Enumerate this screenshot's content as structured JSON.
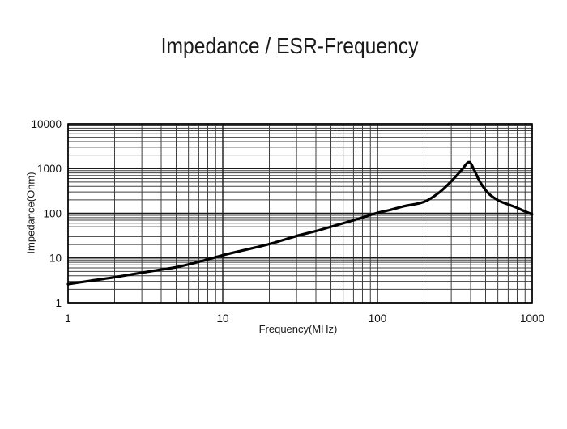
{
  "page": {
    "background": "#ffffff",
    "text_color": "#111111"
  },
  "chart_data": {
    "type": "line",
    "title": "Impedance / ESR-Frequency",
    "xlabel": "Frequency(MHz)",
    "ylabel": "Impedance(Ohm)",
    "x_scale": "log",
    "y_scale": "log",
    "xlim": [
      1,
      1000
    ],
    "ylim": [
      1,
      10000
    ],
    "x_ticks": [
      1,
      10,
      100,
      1000
    ],
    "y_ticks": [
      1,
      10,
      100,
      1000,
      10000
    ],
    "grid": {
      "major": true,
      "minor": true,
      "major_color": "#1a1a1a",
      "minor_color": "#3f3f3f"
    },
    "legend": "none",
    "series": [
      {
        "name": "Impedance",
        "color": "#000000",
        "points": [
          [
            1,
            2.6
          ],
          [
            1.4,
            3.1
          ],
          [
            2,
            3.7
          ],
          [
            3,
            4.7
          ],
          [
            4,
            5.5
          ],
          [
            5,
            6.2
          ],
          [
            7,
            8.2
          ],
          [
            10,
            11.5
          ],
          [
            14,
            15.2
          ],
          [
            20,
            20.5
          ],
          [
            30,
            31
          ],
          [
            40,
            40
          ],
          [
            50,
            50
          ],
          [
            70,
            70
          ],
          [
            100,
            102
          ],
          [
            120,
            118
          ],
          [
            150,
            145
          ],
          [
            200,
            180
          ],
          [
            250,
            290
          ],
          [
            300,
            520
          ],
          [
            350,
            930
          ],
          [
            390,
            1400
          ],
          [
            420,
            960
          ],
          [
            450,
            580
          ],
          [
            480,
            400
          ],
          [
            520,
            280
          ],
          [
            570,
            220
          ],
          [
            620,
            185
          ],
          [
            700,
            158
          ],
          [
            800,
            132
          ],
          [
            900,
            110
          ],
          [
            1000,
            95
          ]
        ]
      }
    ]
  }
}
